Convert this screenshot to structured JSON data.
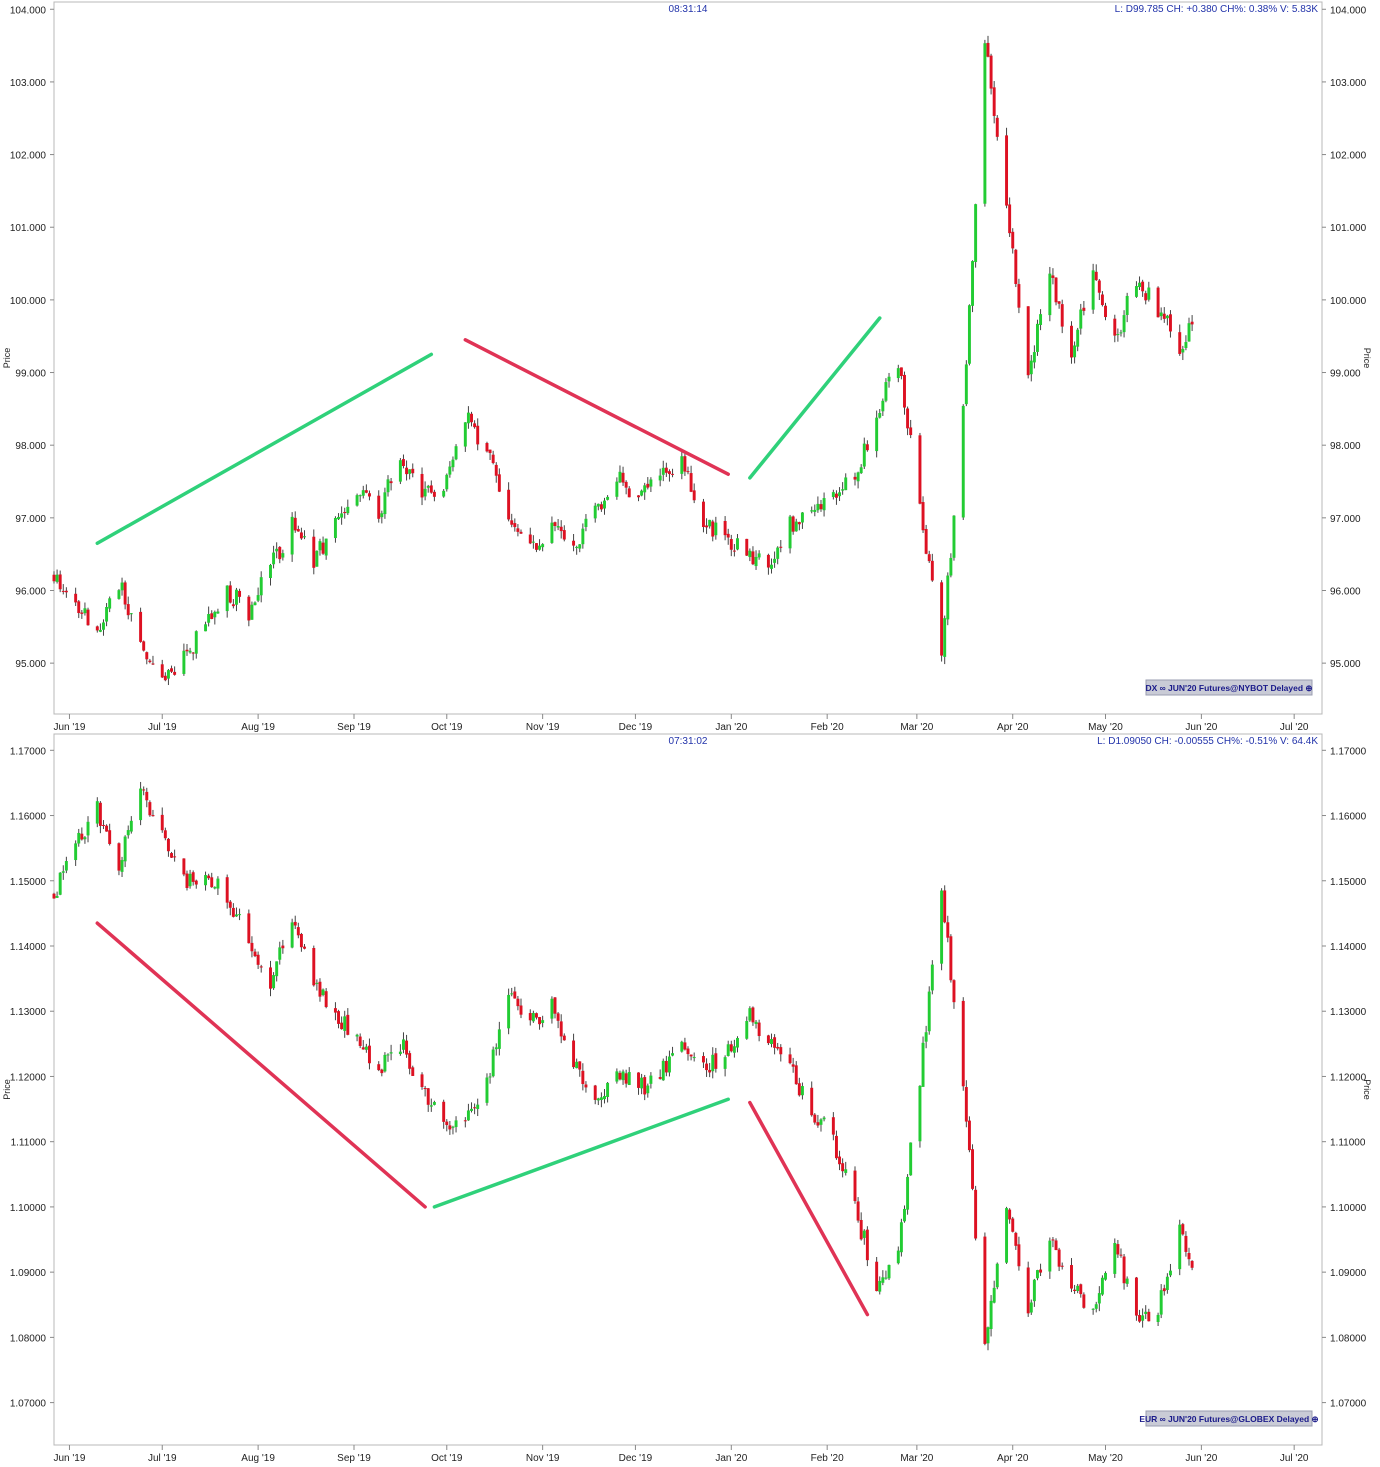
{
  "chart_data": [
    {
      "type": "candlestick",
      "time": "08:31:14",
      "info": "L: D99.785 CH: +0.380 CH%: 0.38% V: 5.83K",
      "badge": "DX ∞ JUN'20 Futures@NYBOT Delayed",
      "ylabel": "Price",
      "ylim": [
        94.3,
        104.1
      ],
      "yticks": [
        "104.000",
        "103.000",
        "102.000",
        "101.000",
        "100.000",
        "99.000",
        "98.000",
        "97.000",
        "96.000",
        "95.000"
      ],
      "ytick_values": [
        104,
        103,
        102,
        101,
        100,
        99,
        98,
        97,
        96,
        95
      ],
      "x_range": [
        "2019-05-27",
        "2020-07-10"
      ],
      "xticks": [
        {
          "date": "2019-06-01",
          "label": "Jun '19"
        },
        {
          "date": "2019-07-01",
          "label": "Jul '19"
        },
        {
          "date": "2019-08-01",
          "label": "Aug '19"
        },
        {
          "date": "2019-09-01",
          "label": "Sep '19"
        },
        {
          "date": "2019-10-01",
          "label": "Oct '19"
        },
        {
          "date": "2019-11-01",
          "label": "Nov '19"
        },
        {
          "date": "2019-12-01",
          "label": "Dec '19"
        },
        {
          "date": "2020-01-01",
          "label": "Jan '20"
        },
        {
          "date": "2020-02-01",
          "label": "Feb '20"
        },
        {
          "date": "2020-03-01",
          "label": "Mar '20"
        },
        {
          "date": "2020-04-01",
          "label": "Apr '20"
        },
        {
          "date": "2020-05-01",
          "label": "May '20"
        },
        {
          "date": "2020-06-01",
          "label": "Jun '20"
        },
        {
          "date": "2020-07-01",
          "label": "Jul '20"
        }
      ],
      "closes": [
        [
          "2019-05-27",
          96.2
        ],
        [
          "2019-06-03",
          95.9
        ],
        [
          "2019-06-10",
          95.4
        ],
        [
          "2019-06-17",
          96.1
        ],
        [
          "2019-06-24",
          95.2
        ],
        [
          "2019-07-01",
          94.7
        ],
        [
          "2019-07-08",
          95.1
        ],
        [
          "2019-07-15",
          95.5
        ],
        [
          "2019-07-22",
          96.0
        ],
        [
          "2019-07-29",
          95.7
        ],
        [
          "2019-08-05",
          96.3
        ],
        [
          "2019-08-12",
          96.9
        ],
        [
          "2019-08-19",
          96.4
        ],
        [
          "2019-08-26",
          96.9
        ],
        [
          "2019-09-02",
          97.3
        ],
        [
          "2019-09-09",
          97.1
        ],
        [
          "2019-09-16",
          97.8
        ],
        [
          "2019-09-23",
          97.4
        ],
        [
          "2019-09-30",
          97.3
        ],
        [
          "2019-10-07",
          98.4
        ],
        [
          "2019-10-14",
          97.9
        ],
        [
          "2019-10-21",
          97.0
        ],
        [
          "2019-10-28",
          96.6
        ],
        [
          "2019-11-04",
          96.9
        ],
        [
          "2019-11-11",
          96.6
        ],
        [
          "2019-11-18",
          97.1
        ],
        [
          "2019-11-25",
          97.6
        ],
        [
          "2019-12-02",
          97.2
        ],
        [
          "2019-12-09",
          97.6
        ],
        [
          "2019-12-16",
          97.8
        ],
        [
          "2019-12-23",
          97.0
        ],
        [
          "2019-12-30",
          96.7
        ],
        [
          "2020-01-06",
          96.5
        ],
        [
          "2020-01-13",
          96.4
        ],
        [
          "2020-01-20",
          96.9
        ],
        [
          "2020-01-27",
          97.1
        ],
        [
          "2020-02-03",
          97.3
        ],
        [
          "2020-02-10",
          97.6
        ],
        [
          "2020-02-17",
          98.4
        ],
        [
          "2020-02-24",
          99.2
        ],
        [
          "2020-03-02",
          97.1
        ],
        [
          "2020-03-09",
          95.2
        ],
        [
          "2020-03-16",
          98.4
        ],
        [
          "2020-03-23",
          103.6
        ],
        [
          "2020-03-30",
          101.3
        ],
        [
          "2020-04-06",
          99.0
        ],
        [
          "2020-04-13",
          100.4
        ],
        [
          "2020-04-20",
          99.3
        ],
        [
          "2020-04-27",
          100.3
        ],
        [
          "2020-05-04",
          99.4
        ],
        [
          "2020-05-11",
          100.3
        ],
        [
          "2020-05-18",
          99.9
        ],
        [
          "2020-05-25",
          99.3
        ],
        [
          "2020-05-29",
          99.785
        ]
      ],
      "annotations": [
        {
          "color": "#2fd17a",
          "from": [
            "2019-06-10",
            96.65
          ],
          "to": [
            "2019-09-26",
            99.25
          ]
        },
        {
          "color": "#e03355",
          "from": [
            "2019-10-07",
            99.45
          ],
          "to": [
            "2019-12-31",
            97.6
          ]
        },
        {
          "color": "#2fd17a",
          "from": [
            "2020-01-07",
            97.55
          ],
          "to": [
            "2020-02-18",
            99.75
          ]
        }
      ]
    },
    {
      "type": "candlestick",
      "time": "07:31:02",
      "info": "L: D1.09050 CH: -0.00555 CH%: -0.51% V: 64.4K",
      "badge": "EUR ∞ JUN'20 Futures@GLOBEX Delayed",
      "ylabel": "Price",
      "ylim": [
        1.0635,
        1.1725
      ],
      "yticks": [
        "1.17000",
        "1.16000",
        "1.15000",
        "1.14000",
        "1.13000",
        "1.12000",
        "1.11000",
        "1.10000",
        "1.09000",
        "1.08000",
        "1.07000"
      ],
      "ytick_values": [
        1.17,
        1.16,
        1.15,
        1.14,
        1.13,
        1.12,
        1.11,
        1.1,
        1.09,
        1.08,
        1.07
      ],
      "x_range": [
        "2019-05-27",
        "2020-07-10"
      ],
      "xticks": [
        {
          "date": "2019-06-01",
          "label": "Jun '19"
        },
        {
          "date": "2019-07-01",
          "label": "Jul '19"
        },
        {
          "date": "2019-08-01",
          "label": "Aug '19"
        },
        {
          "date": "2019-09-01",
          "label": "Sep '19"
        },
        {
          "date": "2019-10-01",
          "label": "Oct '19"
        },
        {
          "date": "2019-11-01",
          "label": "Nov '19"
        },
        {
          "date": "2019-12-01",
          "label": "Dec '19"
        },
        {
          "date": "2020-01-01",
          "label": "Jan '20"
        },
        {
          "date": "2020-02-01",
          "label": "Feb '20"
        },
        {
          "date": "2020-03-01",
          "label": "Mar '20"
        },
        {
          "date": "2020-04-01",
          "label": "Apr '20"
        },
        {
          "date": "2020-05-01",
          "label": "May '20"
        },
        {
          "date": "2020-06-01",
          "label": "Jun '20"
        },
        {
          "date": "2020-07-01",
          "label": "Jul '20"
        }
      ],
      "closes": [
        [
          "2019-05-27",
          1.148
        ],
        [
          "2019-06-03",
          1.156
        ],
        [
          "2019-06-10",
          1.161
        ],
        [
          "2019-06-17",
          1.153
        ],
        [
          "2019-06-24",
          1.165
        ],
        [
          "2019-07-01",
          1.157
        ],
        [
          "2019-07-08",
          1.15
        ],
        [
          "2019-07-15",
          1.15
        ],
        [
          "2019-07-22",
          1.148
        ],
        [
          "2019-07-29",
          1.14
        ],
        [
          "2019-08-05",
          1.135
        ],
        [
          "2019-08-12",
          1.145
        ],
        [
          "2019-08-19",
          1.135
        ],
        [
          "2019-08-26",
          1.13
        ],
        [
          "2019-09-02",
          1.125
        ],
        [
          "2019-09-09",
          1.121
        ],
        [
          "2019-09-16",
          1.125
        ],
        [
          "2019-09-23",
          1.119
        ],
        [
          "2019-09-30",
          1.112
        ],
        [
          "2019-10-07",
          1.113
        ],
        [
          "2019-10-14",
          1.119
        ],
        [
          "2019-10-21",
          1.133
        ],
        [
          "2019-10-28",
          1.128
        ],
        [
          "2019-11-04",
          1.131
        ],
        [
          "2019-11-11",
          1.122
        ],
        [
          "2019-11-18",
          1.116
        ],
        [
          "2019-11-25",
          1.121
        ],
        [
          "2019-12-02",
          1.118
        ],
        [
          "2019-12-09",
          1.12
        ],
        [
          "2019-12-16",
          1.126
        ],
        [
          "2019-12-23",
          1.121
        ],
        [
          "2019-12-30",
          1.123
        ],
        [
          "2020-01-06",
          1.13
        ],
        [
          "2020-01-13",
          1.125
        ],
        [
          "2020-01-20",
          1.121
        ],
        [
          "2020-01-27",
          1.115
        ],
        [
          "2020-02-03",
          1.11
        ],
        [
          "2020-02-10",
          1.1
        ],
        [
          "2020-02-17",
          1.088
        ],
        [
          "2020-02-24",
          1.093
        ],
        [
          "2020-03-02",
          1.12
        ],
        [
          "2020-03-09",
          1.148
        ],
        [
          "2020-03-16",
          1.12
        ],
        [
          "2020-03-23",
          1.078
        ],
        [
          "2020-03-30",
          1.1
        ],
        [
          "2020-04-06",
          1.085
        ],
        [
          "2020-04-13",
          1.095
        ],
        [
          "2020-04-20",
          1.088
        ],
        [
          "2020-04-27",
          1.084
        ],
        [
          "2020-05-04",
          1.095
        ],
        [
          "2020-05-11",
          1.082
        ],
        [
          "2020-05-18",
          1.085
        ],
        [
          "2020-05-25",
          1.096
        ],
        [
          "2020-05-29",
          1.0905
        ]
      ],
      "annotations": [
        {
          "color": "#e03355",
          "from": [
            "2019-06-10",
            1.1435
          ],
          "to": [
            "2019-09-24",
            1.1
          ]
        },
        {
          "color": "#2fd17a",
          "from": [
            "2019-09-27",
            1.1
          ],
          "to": [
            "2019-12-31",
            1.1165
          ]
        },
        {
          "color": "#e03355",
          "from": [
            "2020-01-07",
            1.116
          ],
          "to": [
            "2020-02-14",
            1.0835
          ]
        }
      ]
    }
  ]
}
